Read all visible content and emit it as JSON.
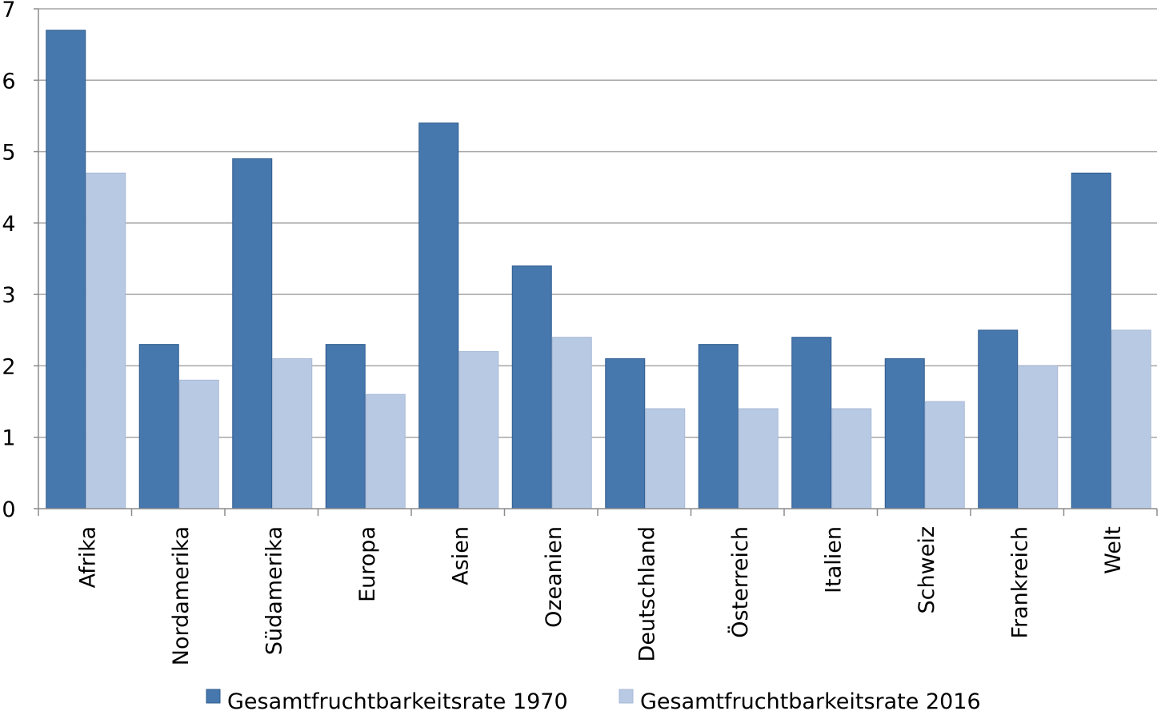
{
  "chart_data": {
    "type": "bar",
    "categories": [
      "Afrika",
      "Nordamerika",
      "Südamerika",
      "Europa",
      "Asien",
      "Ozeanien",
      "Deutschland",
      "Österreich",
      "Italien",
      "Schweiz",
      "Frankreich",
      "Welt"
    ],
    "series": [
      {
        "name": "Gesamtfruchtbarkeitsrate 1970",
        "color": "#4677ad",
        "values": [
          6.7,
          2.3,
          4.9,
          2.3,
          5.4,
          3.4,
          2.1,
          2.3,
          2.4,
          2.1,
          2.5,
          4.7
        ]
      },
      {
        "name": "Gesamtfruchtbarkeitsrate 2016",
        "color": "#b8c9e4",
        "values": [
          4.7,
          1.8,
          2.1,
          1.6,
          2.2,
          2.4,
          1.4,
          1.4,
          1.4,
          1.5,
          2.0,
          2.5
        ]
      }
    ],
    "ylim": [
      0,
      7
    ],
    "yticks": [
      0,
      1,
      2,
      3,
      4,
      5,
      6,
      7
    ],
    "grid": true,
    "legend": "bottom"
  }
}
